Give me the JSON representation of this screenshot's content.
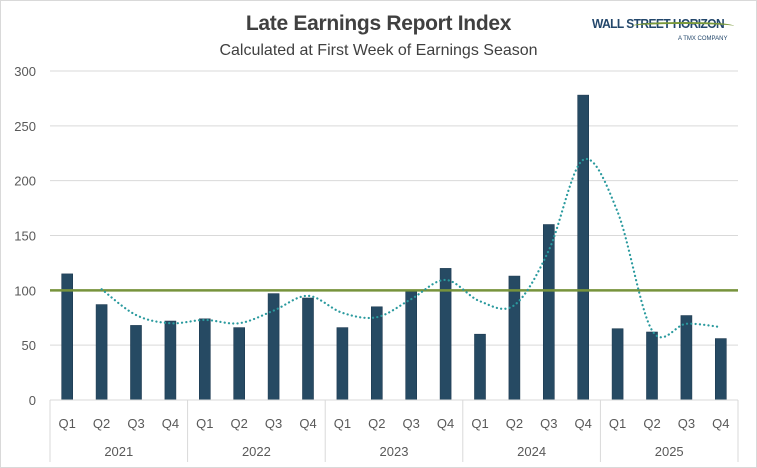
{
  "logo": {
    "brand": "WALL STREET HORIZON",
    "tagline": "A TMX COMPANY"
  },
  "chart_data": {
    "type": "bar",
    "title": "Late Earnings Report Index",
    "subtitle": "Calculated at First Week of Earnings Season",
    "xlabel": "",
    "ylabel": "",
    "ylim": [
      0,
      300
    ],
    "yticks": [
      0,
      50,
      100,
      150,
      200,
      250,
      300
    ],
    "grid": true,
    "legend": "none",
    "groups": [
      {
        "label": "2021",
        "categories": [
          "Q1",
          "Q2",
          "Q3",
          "Q4"
        ]
      },
      {
        "label": "2022",
        "categories": [
          "Q1",
          "Q2",
          "Q3",
          "Q4"
        ]
      },
      {
        "label": "2023",
        "categories": [
          "Q1",
          "Q2",
          "Q3",
          "Q4"
        ]
      },
      {
        "label": "2024",
        "categories": [
          "Q1",
          "Q2",
          "Q3",
          "Q4"
        ]
      },
      {
        "label": "2025",
        "categories": [
          "Q1",
          "Q2",
          "Q3",
          "Q4"
        ]
      }
    ],
    "categories": [
      "2021 Q1",
      "2021 Q2",
      "2021 Q3",
      "2021 Q4",
      "2022 Q1",
      "2022 Q2",
      "2022 Q3",
      "2022 Q4",
      "2023 Q1",
      "2023 Q2",
      "2023 Q3",
      "2023 Q4",
      "2024 Q1",
      "2024 Q2",
      "2024 Q3",
      "2024 Q4",
      "2025 Q1",
      "2025 Q2",
      "2025 Q3",
      "2025 Q4"
    ],
    "series": [
      {
        "name": "Late Earnings Report Index",
        "type": "bar",
        "color": "#264a63",
        "values": [
          115,
          87,
          68,
          72,
          74,
          66,
          97,
          93,
          66,
          85,
          99,
          120,
          60,
          113,
          160,
          278,
          65,
          62,
          77,
          56
        ]
      },
      {
        "name": "Baseline",
        "type": "line",
        "color": "#77933c",
        "values": [
          100,
          100,
          100,
          100,
          100,
          100,
          100,
          100,
          100,
          100,
          100,
          100,
          100,
          100,
          100,
          100,
          100,
          100,
          100,
          100
        ]
      },
      {
        "name": "2-period moving average",
        "type": "line",
        "style": "dotted",
        "color": "#2a9a9e",
        "values": [
          null,
          101,
          77.5,
          70,
          73,
          70,
          81.5,
          95,
          79.5,
          75.5,
          92,
          109.5,
          90,
          86.5,
          136.5,
          219,
          171.5,
          63.5,
          69.5,
          66.5
        ]
      }
    ]
  }
}
